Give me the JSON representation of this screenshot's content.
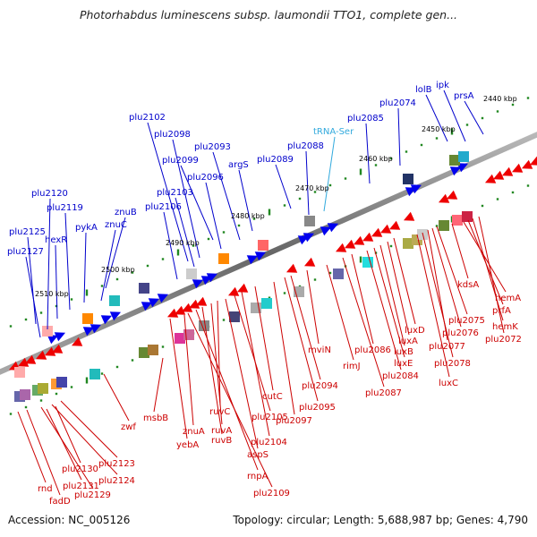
{
  "title": "Photorhabdus luminescens subsp. laumondii TTO1, complete gen...",
  "footer": {
    "accession": "Accession: NC_005126",
    "summary": "Topology: circular; Length: 5,688,987 bp; Genes: 4,790"
  },
  "colors": {
    "top_label": "#0000cc",
    "trna_label": "#33aadd",
    "bottom_label": "#cc0000",
    "forward_feature": "#0000ee",
    "reverse_feature": "#ee0000",
    "backbone": "#888888",
    "tick": "#228822"
  },
  "scale_labels": [
    "2440 kbp",
    "2450 kbp",
    "2460 kbp",
    "2470 kbp",
    "2480 kbp",
    "2490 kbp",
    "2500 kbp",
    "2510 kbp"
  ],
  "top_labels": [
    "prsA",
    "ipk",
    "lolB",
    "plu2074",
    "plu2085",
    "tRNA-Ser",
    "plu2088",
    "plu2089",
    "argS",
    "plu2093",
    "plu2096",
    "plu2098",
    "plu2099",
    "plu2102",
    "plu2103",
    "plu2106",
    "znuB",
    "znuC",
    "pykA",
    "plu2119",
    "hexR",
    "plu2120",
    "plu2125",
    "plu2127"
  ],
  "bottom_labels": [
    "kdsA",
    "hemA",
    "prfA",
    "hemK",
    "plu2072",
    "plu2075",
    "plu2076",
    "plu2077",
    "plu2078",
    "luxC",
    "luxD",
    "luxA",
    "luxB",
    "luxE",
    "plu2084",
    "plu2086",
    "plu2087",
    "rimJ",
    "mviN",
    "plu2094",
    "plu2095",
    "plu2097",
    "cutC",
    "plu2104",
    "plu2105",
    "aspS",
    "ruvC",
    "ruvA",
    "ruvB",
    "rnpA",
    "plu2109",
    "znuA",
    "yebA",
    "msbB",
    "zwf",
    "plu2123",
    "plu2124",
    "plu2129",
    "plu2130",
    "plu2131",
    "fadD",
    "rnd"
  ]
}
